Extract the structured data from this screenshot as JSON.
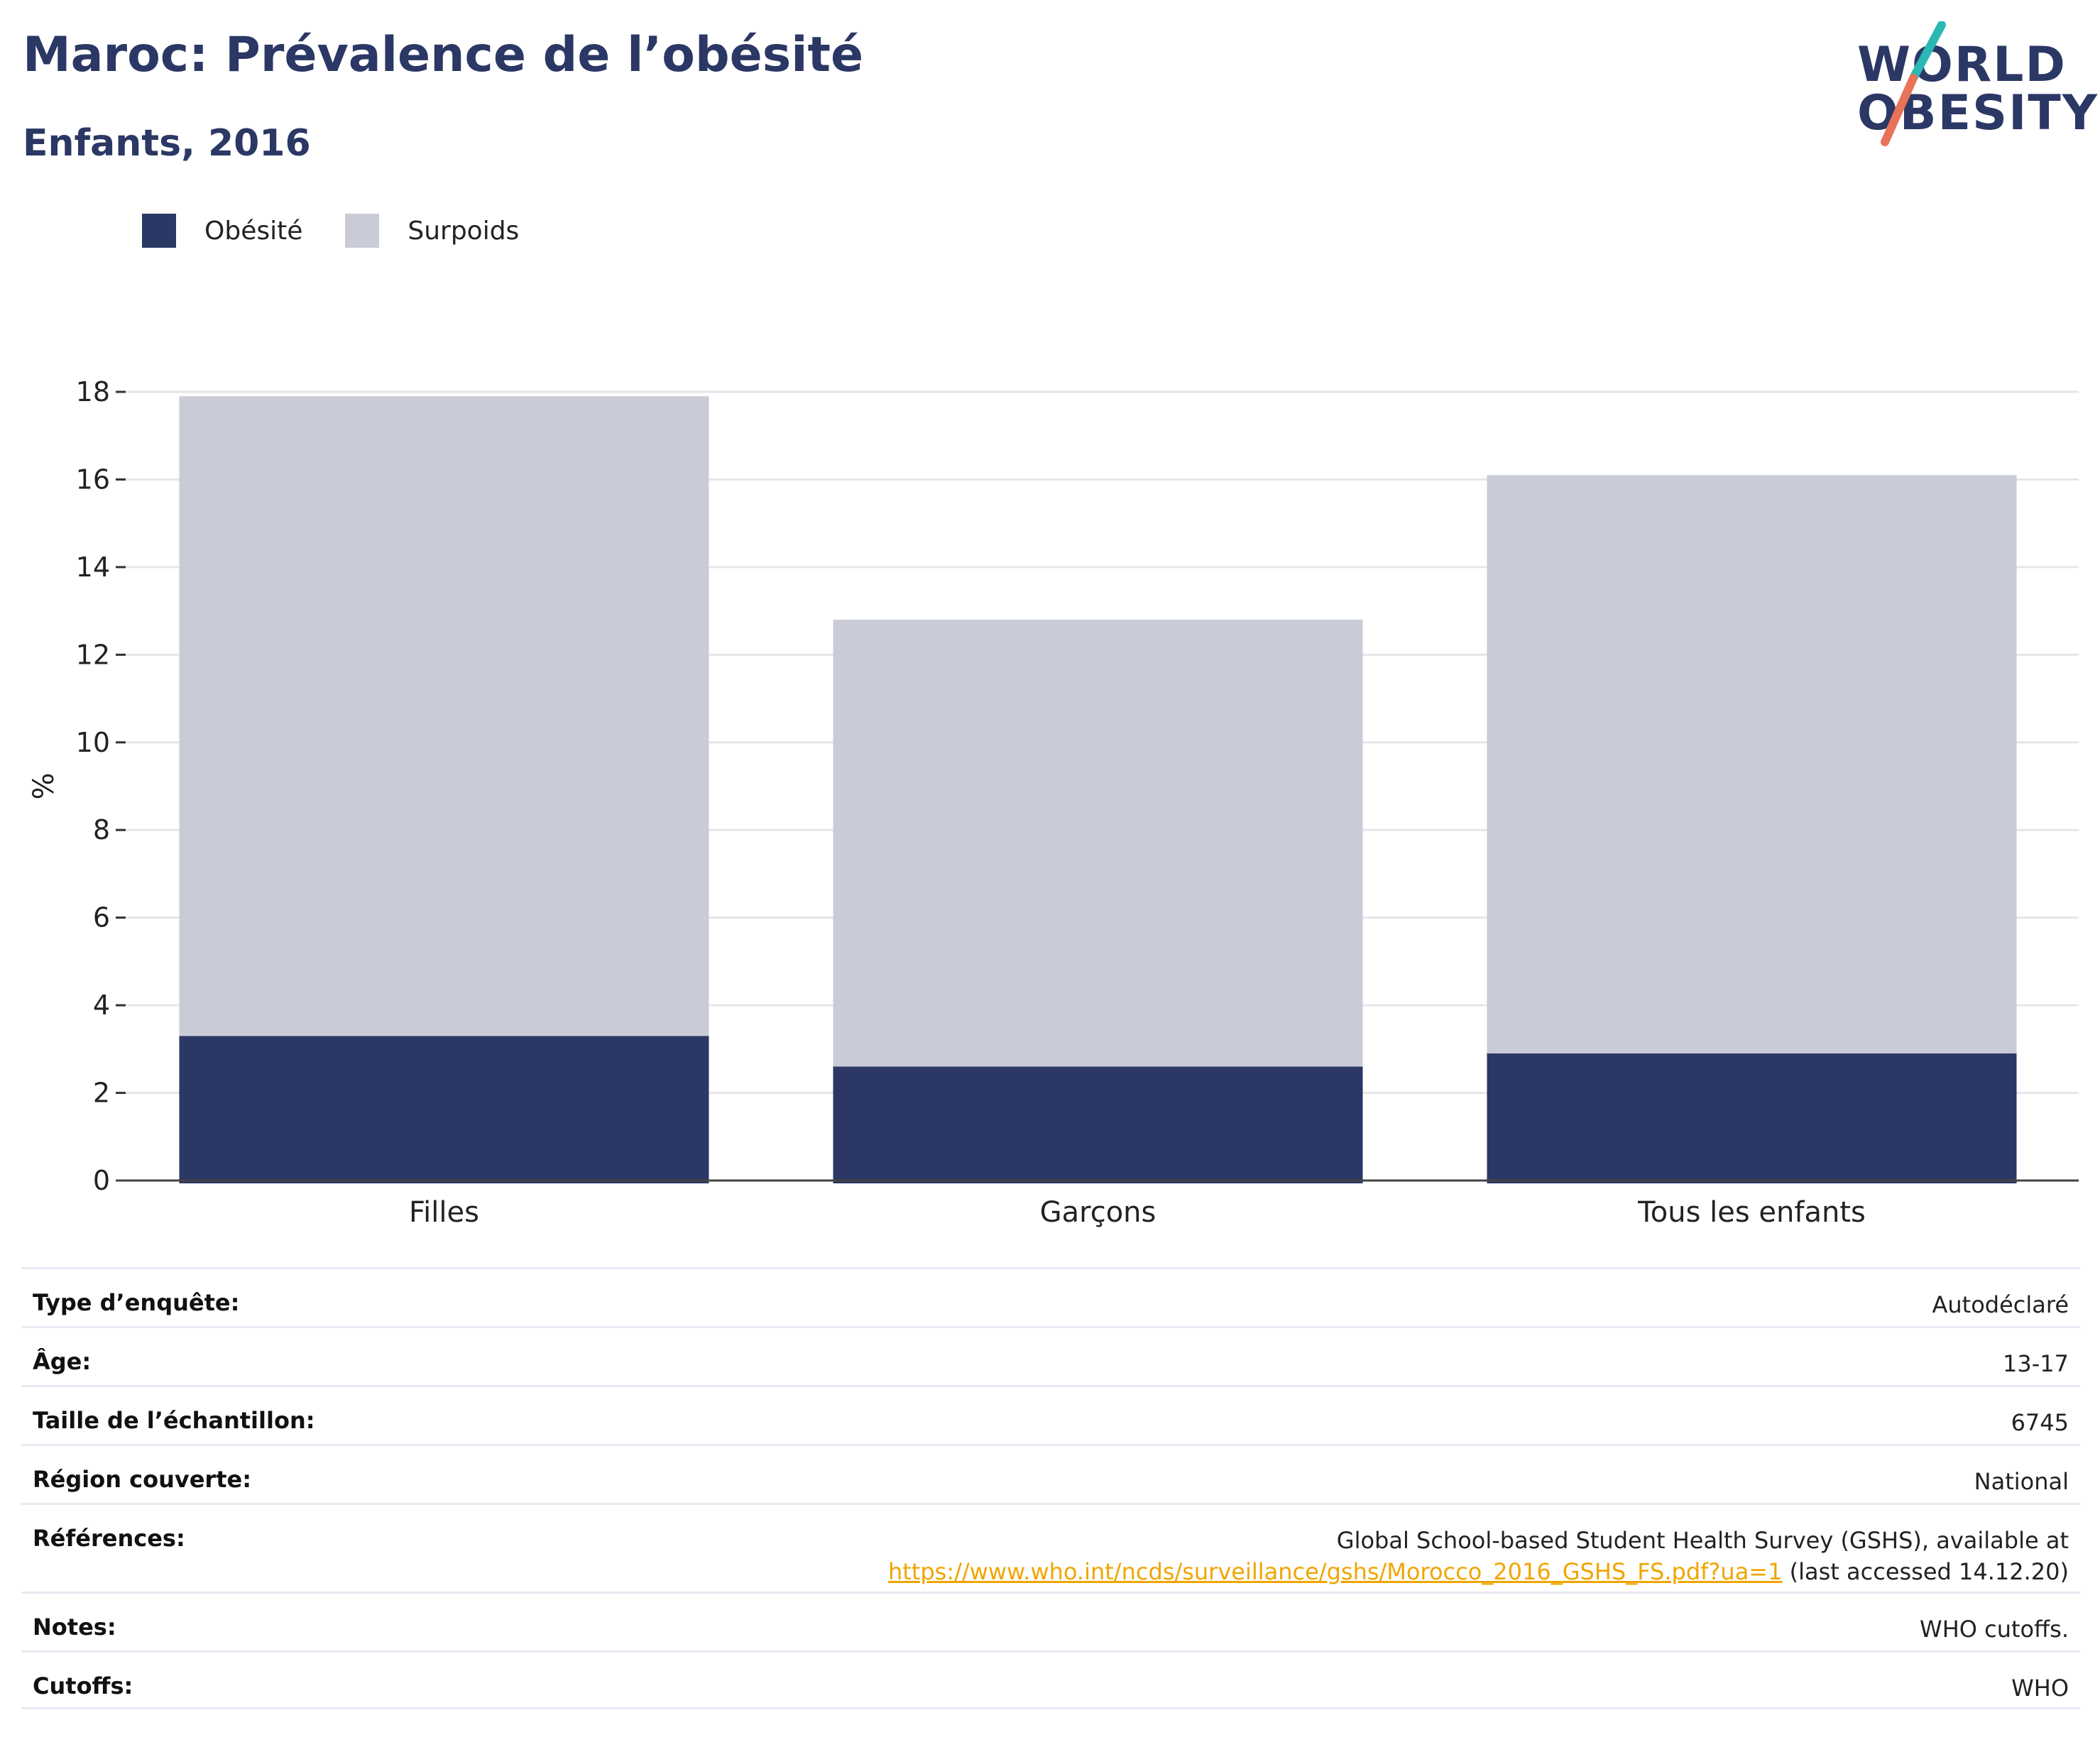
{
  "header": {
    "title": "Maroc: Prévalence de l’obésité",
    "subtitle": "Enfants, 2016"
  },
  "logo": {
    "line1": "WORLD",
    "line2": "OBESITY",
    "colors": {
      "navy": "#2b3764",
      "teal": "#2bb7b3",
      "coral": "#e8735a"
    }
  },
  "legend": [
    {
      "label": "Obésité",
      "color": "#2b3764"
    },
    {
      "label": "Surpoids",
      "color": "#c9cbd6"
    }
  ],
  "chart_data": {
    "type": "bar",
    "stacked": true,
    "categories": [
      "Filles",
      "Garçons",
      "Tous les enfants"
    ],
    "series": [
      {
        "name": "Obésité",
        "values": [
          3.3,
          2.6,
          2.9
        ],
        "color": "#2b3764"
      },
      {
        "name": "Surpoids",
        "values": [
          14.6,
          10.2,
          13.2
        ],
        "color": "#c9cbd6"
      }
    ],
    "ylabel": "%",
    "ylim": [
      0,
      18
    ],
    "yticks": [
      0,
      2,
      4,
      6,
      8,
      10,
      12,
      14,
      16,
      18
    ],
    "grid": true,
    "legend_position": "top-left"
  },
  "info": {
    "rows": [
      {
        "label": "Type d’enquête:",
        "value": "Autodéclaré"
      },
      {
        "label": "Âge:",
        "value": "13-17"
      },
      {
        "label": "Taille de l’échantillon:",
        "value": "6745"
      },
      {
        "label": "Région couverte:",
        "value": "National"
      },
      {
        "label": "Notes:",
        "value": "WHO cutoffs."
      },
      {
        "label": "Cutoffs:",
        "value": "WHO"
      }
    ],
    "references": {
      "label": "Références:",
      "line1": "Global School-based Student Health Survey (GSHS), available at",
      "link": "https://www.who.int/ncds/surveillance/gshs/Morocco_2016_GSHS_FS.pdf?ua=1",
      "suffix": " (last accessed 14.12.20)"
    }
  }
}
